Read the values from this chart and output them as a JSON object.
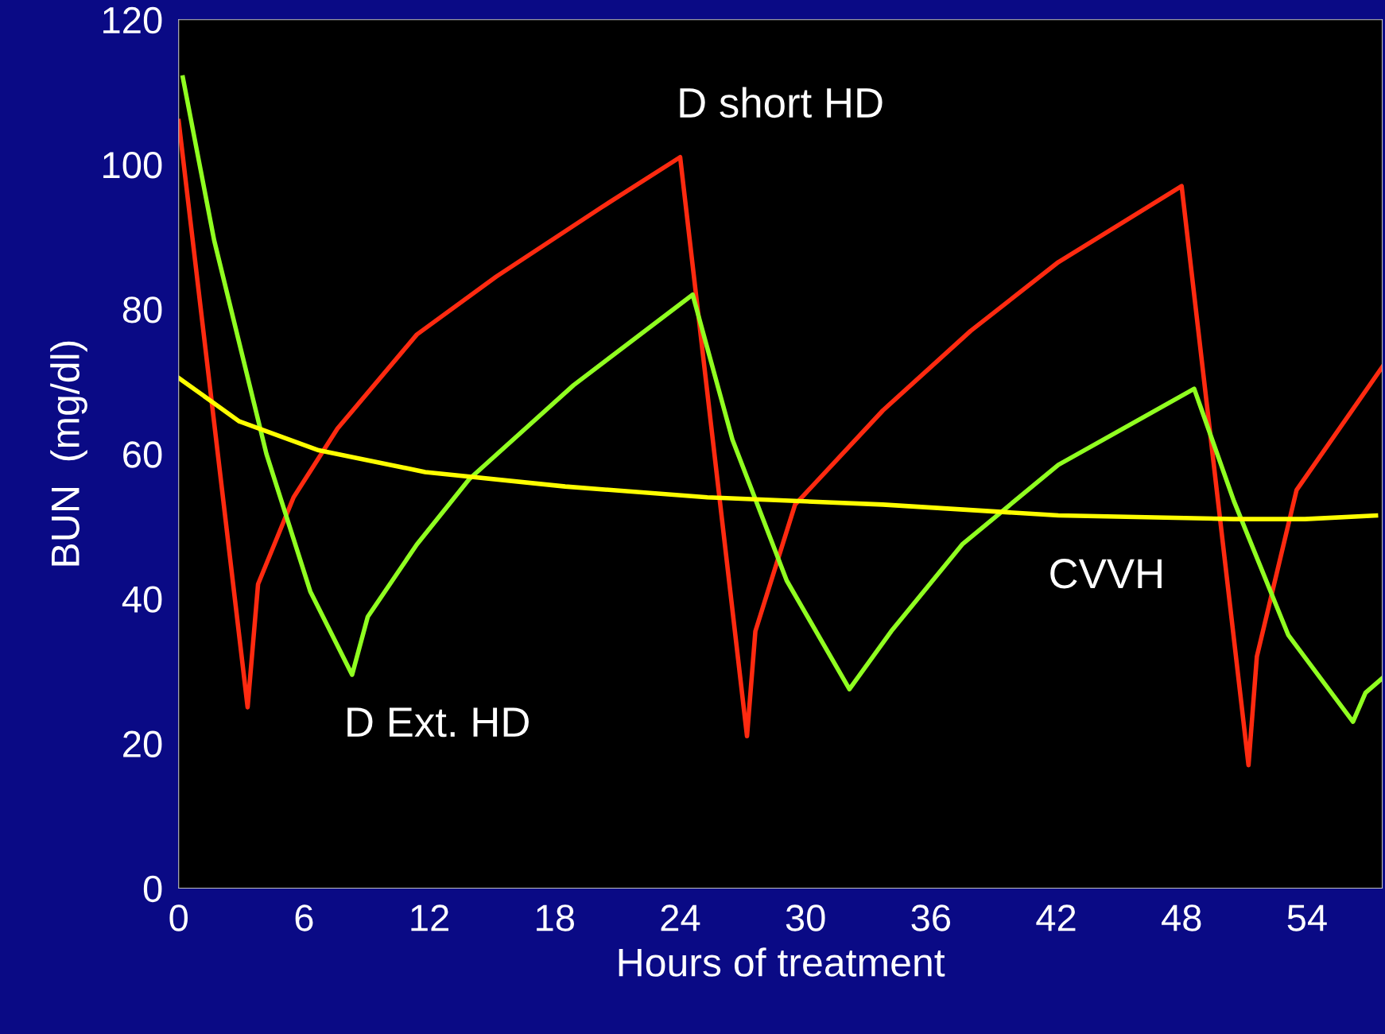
{
  "chart_data": {
    "type": "line",
    "xlabel": "Hours of treatment",
    "ylabel": "BUN  (mg/dl)",
    "xlim": [
      0,
      57.6
    ],
    "ylim": [
      0,
      120
    ],
    "xticks": [
      0,
      6,
      12,
      18,
      24,
      30,
      36,
      42,
      48,
      54
    ],
    "yticks": [
      0,
      20,
      40,
      60,
      80,
      100,
      120
    ],
    "grid": false,
    "marker": "none",
    "line_style": "solid",
    "series": [
      {
        "color": "#ff2a10",
        "x": [
          0,
          3.3,
          3.8,
          5.5,
          7.6,
          11.4,
          15.2,
          20.2,
          24,
          27.2,
          27.6,
          29.5,
          33.7,
          37.9,
          42.1,
          48,
          51.2,
          51.6,
          53.5,
          57.6
        ],
        "values": [
          106,
          25,
          42,
          54,
          63.5,
          76.5,
          84.5,
          94,
          101,
          21,
          35.5,
          53,
          66,
          77,
          86.5,
          97,
          17,
          32,
          55,
          72
        ]
      },
      {
        "color": "#90ff20",
        "x": [
          0.2,
          1.7,
          4.2,
          6.3,
          8.3,
          9.05,
          11.4,
          13.9,
          18.9,
          24.6,
          26.5,
          29.1,
          32.1,
          34.1,
          37.5,
          42.1,
          48.6,
          50.5,
          53.1,
          56.2,
          56.8,
          57.6
        ],
        "values": [
          112,
          89.5,
          60,
          41,
          29.5,
          37.5,
          47.5,
          56.5,
          69.5,
          82,
          62,
          42.5,
          27.5,
          35.5,
          47.5,
          58.5,
          69,
          53.5,
          35,
          23,
          27,
          29
        ]
      },
      {
        "color": "#ffff00",
        "x": [
          0,
          2.9,
          6.7,
          11.8,
          18.5,
          25.3,
          33.7,
          42.1,
          50.5,
          53.9,
          57.3
        ],
        "values": [
          70.5,
          64.5,
          60.5,
          57.5,
          55.5,
          54,
          53,
          51.5,
          51,
          51,
          51.5
        ]
      }
    ],
    "annotations": [
      "D short HD",
      "D Ext. HD",
      "CVVH"
    ]
  }
}
